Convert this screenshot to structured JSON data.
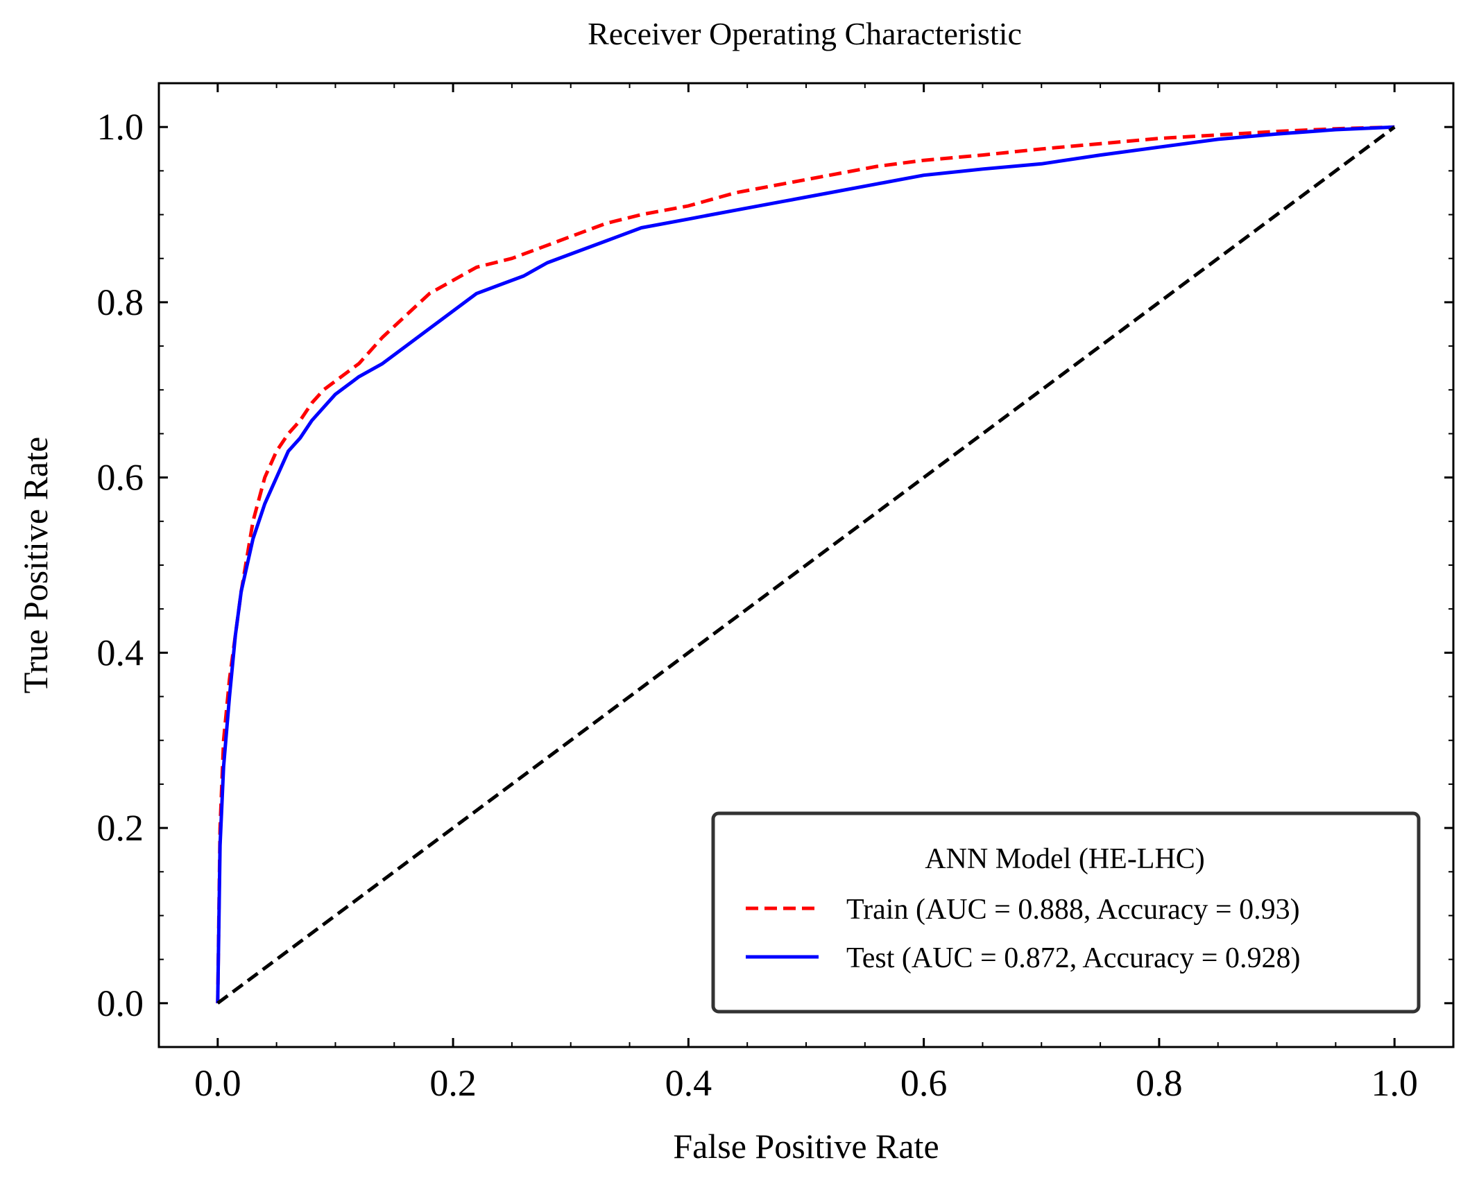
{
  "chart_data": {
    "type": "line",
    "title": "Receiver Operating Characteristic",
    "xlabel": "False Positive Rate",
    "ylabel": "True Positive Rate",
    "xlim": [
      -0.05,
      1.05
    ],
    "ylim": [
      -0.05,
      1.05
    ],
    "xticks": [
      "0.0",
      "0.2",
      "0.4",
      "0.6",
      "0.8",
      "1.0"
    ],
    "yticks": [
      "0.0",
      "0.2",
      "0.4",
      "0.6",
      "0.8",
      "1.0"
    ],
    "grid": false,
    "legend": {
      "title": "ANN Model (HE-LHC)",
      "position": "lower-right"
    },
    "series": [
      {
        "name": "Train (AUC = 0.888, Accuracy = 0.93)",
        "color": "#ff0000",
        "style": "dashed",
        "x": [
          0,
          0.002,
          0.005,
          0.01,
          0.015,
          0.02,
          0.025,
          0.03,
          0.04,
          0.05,
          0.06,
          0.07,
          0.08,
          0.09,
          0.1,
          0.12,
          0.14,
          0.16,
          0.18,
          0.2,
          0.22,
          0.25,
          0.28,
          0.3,
          0.33,
          0.36,
          0.4,
          0.44,
          0.48,
          0.52,
          0.56,
          0.6,
          0.65,
          0.7,
          0.75,
          0.8,
          0.85,
          0.9,
          0.95,
          1.0
        ],
        "y": [
          0,
          0.2,
          0.3,
          0.37,
          0.42,
          0.47,
          0.51,
          0.55,
          0.6,
          0.63,
          0.65,
          0.665,
          0.685,
          0.7,
          0.71,
          0.73,
          0.76,
          0.785,
          0.81,
          0.825,
          0.84,
          0.85,
          0.865,
          0.875,
          0.89,
          0.9,
          0.91,
          0.925,
          0.935,
          0.945,
          0.955,
          0.962,
          0.968,
          0.975,
          0.981,
          0.987,
          0.991,
          0.995,
          0.998,
          1.0
        ]
      },
      {
        "name": "Test (AUC = 0.872, Accuracy = 0.928)",
        "color": "#0000ff",
        "style": "solid",
        "x": [
          0,
          0.002,
          0.005,
          0.01,
          0.015,
          0.02,
          0.025,
          0.03,
          0.04,
          0.05,
          0.06,
          0.07,
          0.08,
          0.09,
          0.1,
          0.11,
          0.12,
          0.14,
          0.16,
          0.18,
          0.2,
          0.22,
          0.24,
          0.26,
          0.28,
          0.3,
          0.33,
          0.36,
          0.4,
          0.42,
          0.44,
          0.48,
          0.52,
          0.56,
          0.6,
          0.65,
          0.7,
          0.75,
          0.8,
          0.85,
          0.9,
          0.95,
          1.0
        ],
        "y": [
          0,
          0.18,
          0.27,
          0.35,
          0.42,
          0.47,
          0.5,
          0.53,
          0.57,
          0.6,
          0.63,
          0.645,
          0.665,
          0.68,
          0.695,
          0.705,
          0.715,
          0.73,
          0.75,
          0.77,
          0.79,
          0.81,
          0.82,
          0.83,
          0.845,
          0.855,
          0.87,
          0.885,
          0.895,
          0.9,
          0.905,
          0.915,
          0.925,
          0.935,
          0.945,
          0.952,
          0.958,
          0.968,
          0.977,
          0.986,
          0.992,
          0.997,
          1.0
        ]
      },
      {
        "name": "",
        "color": "#000000",
        "style": "dashed",
        "x": [
          0,
          1
        ],
        "y": [
          0,
          1
        ]
      }
    ]
  }
}
